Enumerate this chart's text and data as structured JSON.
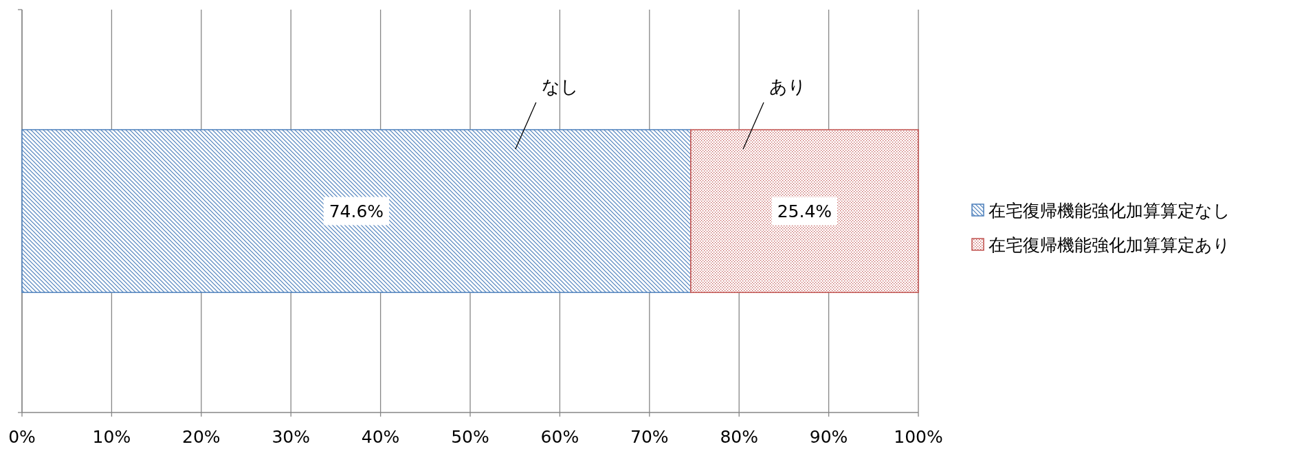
{
  "chart_data": {
    "type": "bar",
    "orientation": "horizontal",
    "stacked": true,
    "categories": [
      null
    ],
    "series": [
      {
        "name": "在宅復帰機能強化加算算定なし",
        "color": "#4a7ebb",
        "values": [
          74.6
        ],
        "value_labels": [
          "74.6%"
        ]
      },
      {
        "name": "在宅復帰機能強化加算算定あり",
        "color": "#c0504d",
        "values": [
          25.4
        ],
        "value_labels": [
          "25.4%"
        ]
      }
    ],
    "xlim": [
      0,
      100
    ],
    "xticks": [
      {
        "value": 0,
        "label": "0%"
      },
      {
        "value": 10,
        "label": "10%"
      },
      {
        "value": 20,
        "label": "20%"
      },
      {
        "value": 30,
        "label": "30%"
      },
      {
        "value": 40,
        "label": "40%"
      },
      {
        "value": 50,
        "label": "50%"
      },
      {
        "value": 60,
        "label": "60%"
      },
      {
        "value": 70,
        "label": "70%"
      },
      {
        "value": 80,
        "label": "80%"
      },
      {
        "value": 90,
        "label": "90%"
      },
      {
        "value": 100,
        "label": "100%"
      }
    ],
    "grid": "x",
    "legend": "right",
    "annotations": [
      "なし",
      "あり"
    ]
  }
}
